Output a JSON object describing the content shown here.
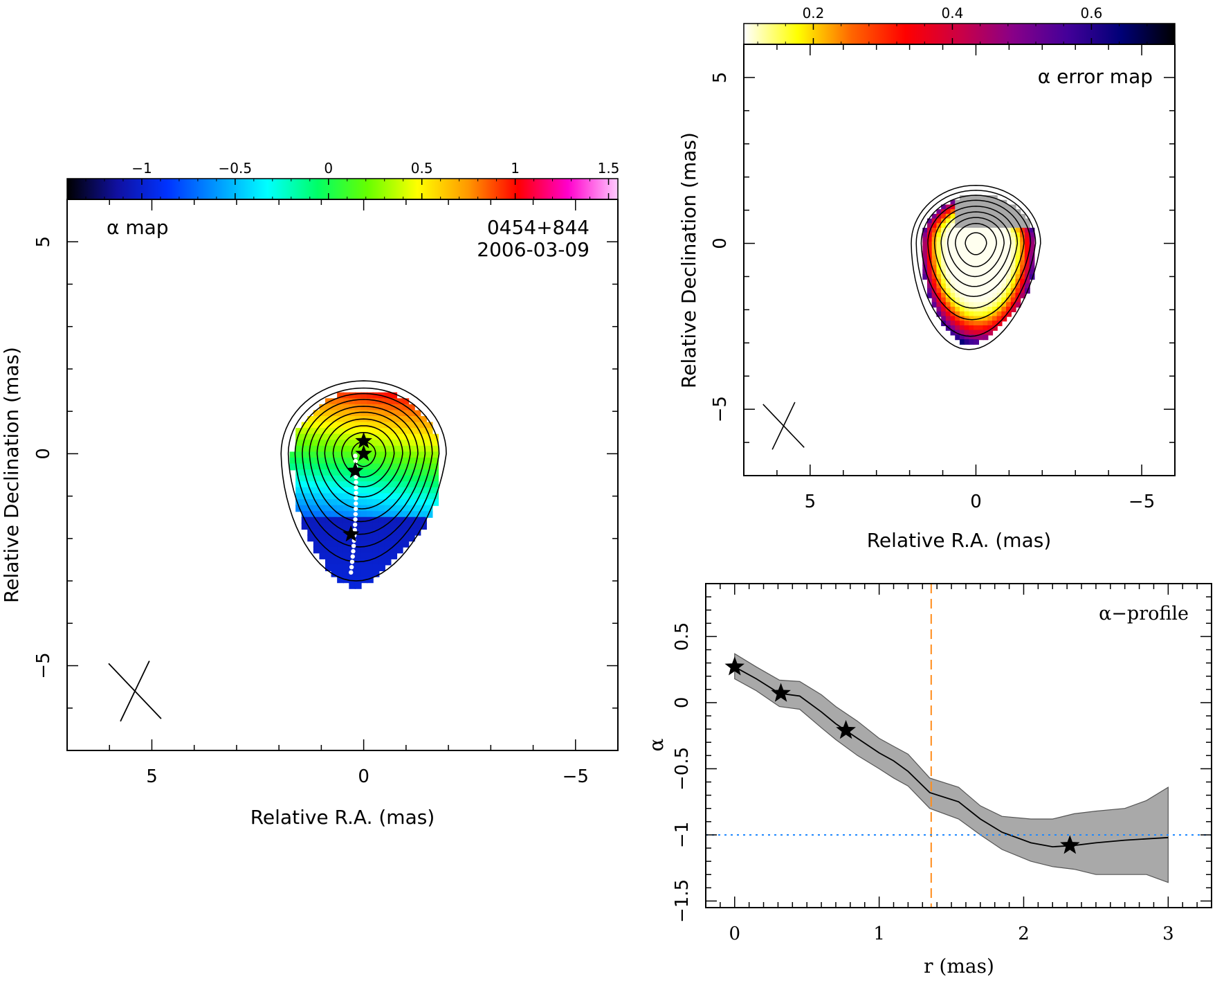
{
  "chart_data": [
    {
      "panel": "alpha-map",
      "type": "heatmap",
      "title": "α map",
      "source": "0454+844",
      "date": "2006-03-09",
      "xlabel": "Relative R.A. (mas)",
      "ylabel": "Relative Declination (mas)",
      "xlim": [
        7,
        -6
      ],
      "ylim": [
        -7,
        6
      ],
      "xticks": [
        5,
        0,
        -5
      ],
      "yticks": [
        5,
        0,
        -5
      ],
      "colorbar": {
        "range": [
          -1.4,
          1.55
        ],
        "ticks": [
          -1,
          -0.5,
          0,
          0.5,
          1,
          1.5
        ],
        "tick_labels": [
          "−1",
          "−0.5",
          "0",
          "0.5",
          "1",
          "1.5"
        ],
        "colormap": "rainbow",
        "colors": [
          "#000000",
          "#1010a0",
          "#0033ff",
          "#0099ff",
          "#00ffff",
          "#00ff66",
          "#66ff00",
          "#ffff00",
          "#ff9900",
          "#ff0000",
          "#ff00cc",
          "#ffccff"
        ]
      },
      "jet_core_star_positions": [
        [
          0.0,
          0.3
        ],
        [
          0.0,
          0.0
        ],
        [
          0.2,
          -0.4
        ],
        [
          0.3,
          -1.9
        ]
      ]
    },
    {
      "panel": "alpha-error-map",
      "type": "heatmap",
      "title": "α error map",
      "xlabel": "Relative R.A. (mas)",
      "ylabel": "Relative Declination (mas)",
      "xlim": [
        7,
        -6
      ],
      "ylim": [
        -7,
        6
      ],
      "xticks": [
        5,
        0,
        -5
      ],
      "yticks": [
        5,
        0,
        -5
      ],
      "colorbar": {
        "range": [
          0.1,
          0.72
        ],
        "ticks": [
          0.2,
          0.4,
          0.6
        ],
        "tick_labels": [
          "0.2",
          "0.4",
          "0.6"
        ],
        "colormap": "yellow-red-purple-black",
        "colors": [
          "#ffffff",
          "#ffff00",
          "#ff6600",
          "#ff0000",
          "#cc0044",
          "#880088",
          "#440099",
          "#000077",
          "#000000"
        ]
      }
    },
    {
      "panel": "alpha-profile",
      "type": "line",
      "title": "α−profile",
      "xlabel": "r (mas)",
      "ylabel": "α",
      "xlim": [
        -0.2,
        3.3
      ],
      "ylim": [
        -1.55,
        0.9
      ],
      "xticks": [
        0,
        1,
        2,
        3
      ],
      "yticks": [
        0.5,
        0,
        -0.5,
        -1,
        -1.5
      ],
      "ytick_labels": [
        "0.5",
        "0",
        "−0.5",
        "−1",
        "−1.5"
      ],
      "profile": {
        "r": [
          0.0,
          0.15,
          0.31,
          0.45,
          0.6,
          0.7,
          0.85,
          1.0,
          1.1,
          1.2,
          1.35,
          1.55,
          1.7,
          1.85,
          2.05,
          2.2,
          2.35,
          2.5,
          2.7,
          2.85,
          3.0
        ],
        "alpha": [
          0.27,
          0.18,
          0.07,
          0.05,
          -0.07,
          -0.16,
          -0.27,
          -0.38,
          -0.44,
          -0.52,
          -0.68,
          -0.75,
          -0.88,
          -0.98,
          -1.06,
          -1.09,
          -1.08,
          -1.06,
          -1.04,
          -1.03,
          -1.02
        ],
        "upper": [
          0.37,
          0.27,
          0.17,
          0.16,
          0.06,
          -0.03,
          -0.14,
          -0.27,
          -0.33,
          -0.39,
          -0.57,
          -0.64,
          -0.78,
          -0.86,
          -0.88,
          -0.88,
          -0.84,
          -0.82,
          -0.8,
          -0.74,
          -0.64
        ],
        "lower": [
          0.18,
          0.09,
          -0.03,
          -0.05,
          -0.19,
          -0.28,
          -0.4,
          -0.5,
          -0.57,
          -0.63,
          -0.8,
          -0.88,
          -1.0,
          -1.11,
          -1.2,
          -1.24,
          -1.26,
          -1.3,
          -1.3,
          -1.3,
          -1.36
        ]
      },
      "star_points": {
        "r": [
          0.0,
          0.32,
          0.77,
          2.32
        ],
        "alpha": [
          0.27,
          0.07,
          -0.21,
          -1.08
        ]
      },
      "reference_lines": [
        {
          "orientation": "vertical",
          "value": 1.36,
          "style": "dashed",
          "color": "#ff8c1a"
        },
        {
          "orientation": "horizontal",
          "value": -1.0,
          "style": "dotted",
          "color": "#1e88ff"
        }
      ]
    }
  ]
}
